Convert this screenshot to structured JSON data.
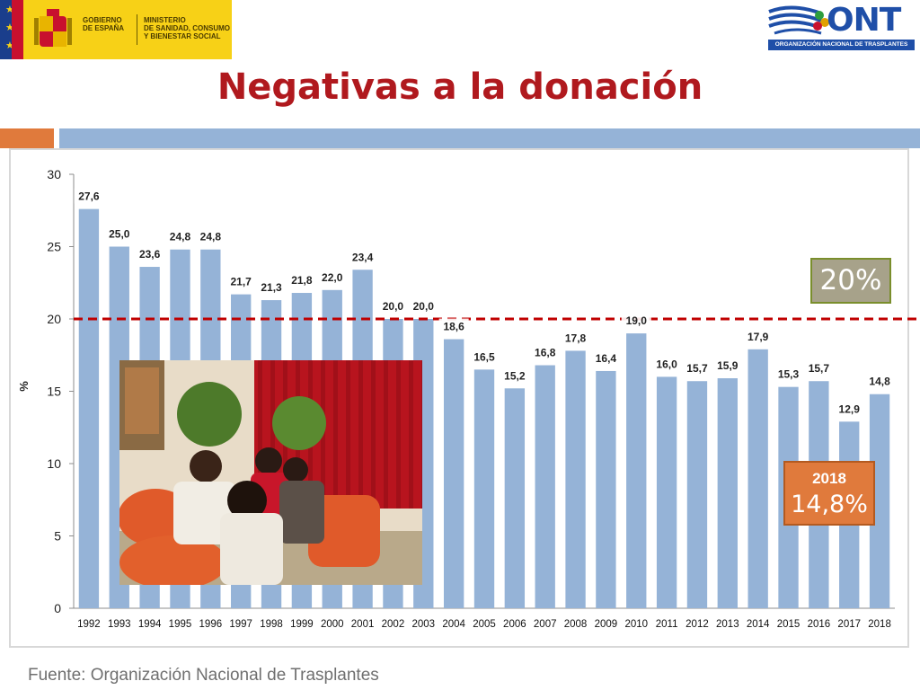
{
  "header": {
    "gov_line1": "GOBIERNO",
    "gov_line2": "DE ESPAÑA",
    "ministry_line1": "MINISTERIO",
    "ministry_line2": "DE SANIDAD, CONSUMO",
    "ministry_line3": "Y BIENESTAR SOCIAL",
    "ont_text": "ONT",
    "ont_subtitle": "ORGANIZACIÓN NACIONAL DE TRASPLANTES"
  },
  "title": "Negativas a la donación",
  "reference_box": {
    "label": "20%"
  },
  "highlight_box": {
    "year": "2018",
    "value": "14,8%"
  },
  "source": "Fuente: Organización Nacional de Trasplantes",
  "colors": {
    "bar": "#95b3d7",
    "reference_line": "#c00000",
    "title": "#b0191e",
    "accent_orange": "#e07a3c"
  },
  "chart_data": {
    "type": "bar",
    "title": "",
    "xlabel": "",
    "ylabel": "%",
    "ylim": [
      0,
      30
    ],
    "yticks": [
      0,
      5,
      10,
      15,
      20,
      25,
      30
    ],
    "reference_line": 20,
    "categories": [
      "1992",
      "1993",
      "1994",
      "1995",
      "1996",
      "1997",
      "1998",
      "1999",
      "2000",
      "2001",
      "2002",
      "2003",
      "2004",
      "2005",
      "2006",
      "2007",
      "2008",
      "2009",
      "2010",
      "2011",
      "2012",
      "2013",
      "2014",
      "2015",
      "2016",
      "2017",
      "2018"
    ],
    "values": [
      27.6,
      25.0,
      23.6,
      24.8,
      24.8,
      21.7,
      21.3,
      21.8,
      22.0,
      23.4,
      20.0,
      20.0,
      18.6,
      16.5,
      15.2,
      16.8,
      17.8,
      16.4,
      19.0,
      16.0,
      15.7,
      15.9,
      17.9,
      15.3,
      15.7,
      12.9,
      14.8
    ],
    "data_labels": [
      "27,6",
      "25,0",
      "23,6",
      "24,8",
      "24,8",
      "21,7",
      "21,3",
      "21,8",
      "22,0",
      "23,4",
      "20,0",
      "20,0",
      "18,6",
      "16,5",
      "15,2",
      "16,8",
      "17,8",
      "16,4",
      "19,0",
      "16,0",
      "15,7",
      "15,9",
      "17,9",
      "15,3",
      "15,7",
      "12,9",
      "14,8"
    ]
  }
}
